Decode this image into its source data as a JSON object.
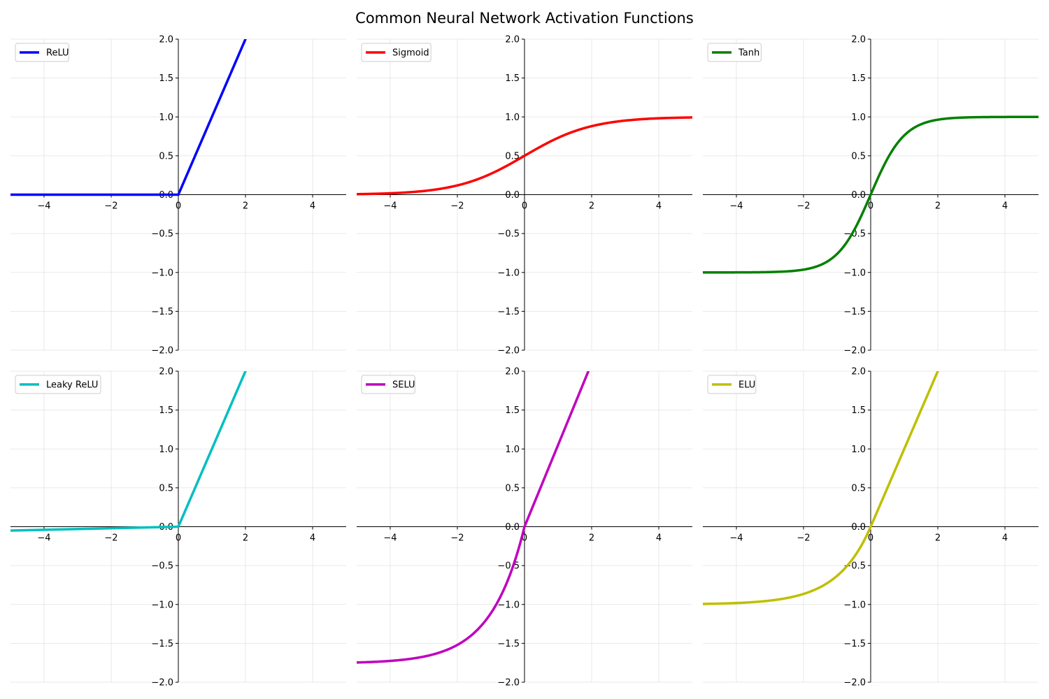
{
  "title": "Common Neural Network Activation Functions",
  "chart_data": [
    {
      "type": "line",
      "fn": "relu",
      "series": [
        {
          "name": "ReLU",
          "color": "#0000ff"
        }
      ],
      "xlim": [
        -5,
        5
      ],
      "ylim": [
        -2,
        2
      ],
      "xticks": [
        -4,
        -2,
        0,
        2,
        4
      ],
      "yticks": [
        -2.0,
        -1.5,
        -1.0,
        -0.5,
        0.0,
        0.5,
        1.0,
        1.5,
        2.0
      ],
      "grid": true,
      "legend": "upper-left"
    },
    {
      "type": "line",
      "fn": "sigmoid",
      "series": [
        {
          "name": "Sigmoid",
          "color": "#ff0000"
        }
      ],
      "xlim": [
        -5,
        5
      ],
      "ylim": [
        -2,
        2
      ],
      "xticks": [
        -4,
        -2,
        0,
        2,
        4
      ],
      "yticks": [
        -2.0,
        -1.5,
        -1.0,
        -0.5,
        0.0,
        0.5,
        1.0,
        1.5,
        2.0
      ],
      "grid": true,
      "legend": "upper-left"
    },
    {
      "type": "line",
      "fn": "tanh",
      "series": [
        {
          "name": "Tanh",
          "color": "#008000"
        }
      ],
      "xlim": [
        -5,
        5
      ],
      "ylim": [
        -2,
        2
      ],
      "xticks": [
        -4,
        -2,
        0,
        2,
        4
      ],
      "yticks": [
        -2.0,
        -1.5,
        -1.0,
        -0.5,
        0.0,
        0.5,
        1.0,
        1.5,
        2.0
      ],
      "grid": true,
      "legend": "upper-left"
    },
    {
      "type": "line",
      "fn": "leaky_relu",
      "alpha": 0.01,
      "series": [
        {
          "name": "Leaky ReLU",
          "color": "#00bfbf"
        }
      ],
      "xlim": [
        -5,
        5
      ],
      "ylim": [
        -2,
        2
      ],
      "xticks": [
        -4,
        -2,
        0,
        2,
        4
      ],
      "yticks": [
        -2.0,
        -1.5,
        -1.0,
        -0.5,
        0.0,
        0.5,
        1.0,
        1.5,
        2.0
      ],
      "grid": true,
      "legend": "upper-left"
    },
    {
      "type": "line",
      "fn": "selu",
      "series": [
        {
          "name": "SELU",
          "color": "#bf00bf"
        }
      ],
      "xlim": [
        -5,
        5
      ],
      "ylim": [
        -2,
        2
      ],
      "xticks": [
        -4,
        -2,
        0,
        2,
        4
      ],
      "yticks": [
        -2.0,
        -1.5,
        -1.0,
        -0.5,
        0.0,
        0.5,
        1.0,
        1.5,
        2.0
      ],
      "grid": true,
      "legend": "upper-left"
    },
    {
      "type": "line",
      "fn": "elu",
      "alpha": 1.0,
      "series": [
        {
          "name": "ELU",
          "color": "#bfbf00"
        }
      ],
      "xlim": [
        -5,
        5
      ],
      "ylim": [
        -2,
        2
      ],
      "xticks": [
        -4,
        -2,
        0,
        2,
        4
      ],
      "yticks": [
        -2.0,
        -1.5,
        -1.0,
        -0.5,
        0.0,
        0.5,
        1.0,
        1.5,
        2.0
      ],
      "grid": true,
      "legend": "upper-left"
    }
  ]
}
